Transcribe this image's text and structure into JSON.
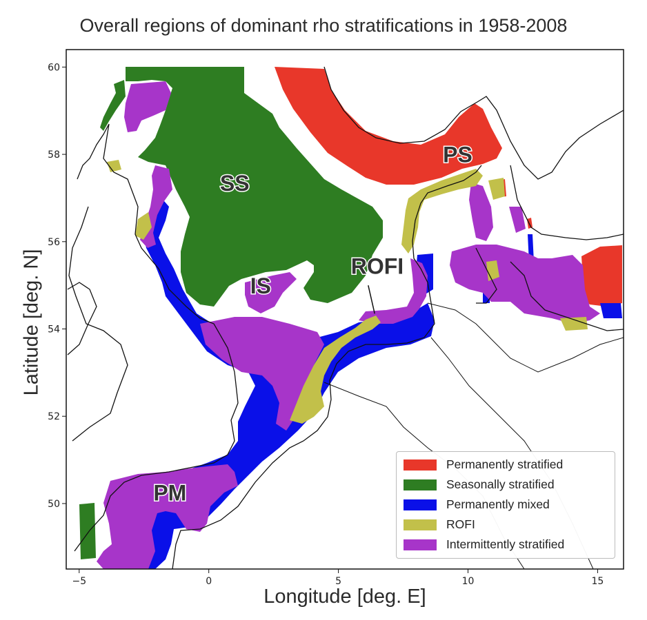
{
  "map": {
    "title": "Overall regions of dominant rho stratifications in 1958-2008",
    "xlabel": "Longitude [deg. E]",
    "ylabel": "Latitude [deg. N]",
    "xlim": [
      -5.5,
      16
    ],
    "ylim": [
      48.5,
      60.4
    ],
    "x_ticks": [
      -5,
      0,
      5,
      10,
      15
    ],
    "y_ticks": [
      50,
      52,
      54,
      56,
      58,
      60
    ],
    "colors": {
      "permanently_stratified": "#e8372a",
      "seasonally_stratified": "#2e7d22",
      "permanently_mixed": "#0a10e8",
      "rofi": "#c2c04a",
      "intermittently_stratified": "#a735c9"
    },
    "region_labels": [
      {
        "text": "PS",
        "lon": 9.6,
        "lat": 57.95
      },
      {
        "text": "SS",
        "lon": 1.0,
        "lat": 57.3
      },
      {
        "text": "IS",
        "lon": 2.0,
        "lat": 54.95
      },
      {
        "text": "ROFI",
        "lon": 6.5,
        "lat": 55.4
      },
      {
        "text": "PM",
        "lon": -1.5,
        "lat": 50.2
      }
    ],
    "rofi_pointer": {
      "from": [
        6.15,
        55.0
      ],
      "to": [
        6.4,
        54.35
      ]
    },
    "legend": [
      {
        "label": "Permanently stratified",
        "color": "#e8372a"
      },
      {
        "label": "Seasonally stratified",
        "color": "#2e7d22"
      },
      {
        "label": "Permanently mixed",
        "color": "#0a10e8"
      },
      {
        "label": "ROFI",
        "color": "#c2c04a"
      },
      {
        "label": "Intermittently stratified",
        "color": "#a735c9"
      }
    ]
  }
}
